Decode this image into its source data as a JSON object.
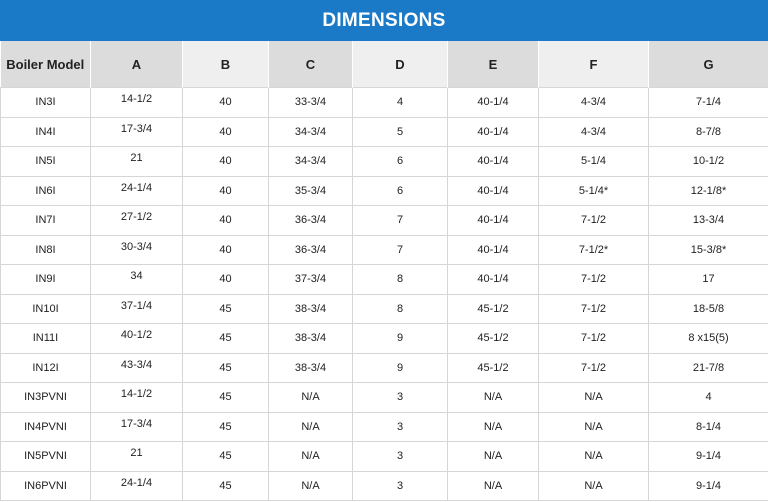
{
  "title": "DIMENSIONS",
  "columns": [
    "Boiler Model",
    "A",
    "B",
    "C",
    "D",
    "E",
    "F",
    "G"
  ],
  "rows": [
    [
      "IN3I",
      "14-1/2",
      "40",
      "33-3/4",
      "4",
      "40-1/4",
      "4-3/4",
      "7-1/4"
    ],
    [
      "IN4I",
      "17-3/4",
      "40",
      "34-3/4",
      "5",
      "40-1/4",
      "4-3/4",
      "8-7/8"
    ],
    [
      "IN5I",
      "21",
      "40",
      "34-3/4",
      "6",
      "40-1/4",
      "5-1/4",
      "10-1/2"
    ],
    [
      "IN6I",
      "24-1/4",
      "40",
      "35-3/4",
      "6",
      "40-1/4",
      "5-1/4*",
      "12-1/8*"
    ],
    [
      "IN7I",
      "27-1/2",
      "40",
      "36-3/4",
      "7",
      "40-1/4",
      "7-1/2",
      "13-3/4"
    ],
    [
      "IN8I",
      "30-3/4",
      "40",
      "36-3/4",
      "7",
      "40-1/4",
      "7-1/2*",
      "15-3/8*"
    ],
    [
      "IN9I",
      "34",
      "40",
      "37-3/4",
      "8",
      "40-1/4",
      "7-1/2",
      "17"
    ],
    [
      "IN10I",
      "37-1/4",
      "45",
      "38-3/4",
      "8",
      "45-1/2",
      "7-1/2",
      "18-5/8"
    ],
    [
      "IN11I",
      "40-1/2",
      "45",
      "38-3/4",
      "9",
      "45-1/2",
      "7-1/2",
      "8 x15(5)"
    ],
    [
      "IN12I",
      "43-3/4",
      "45",
      "38-3/4",
      "9",
      "45-1/2",
      "7-1/2",
      "21-7/8"
    ],
    [
      "IN3PVNI",
      "14-1/2",
      "45",
      "N/A",
      "3",
      "N/A",
      "N/A",
      "4"
    ],
    [
      "IN4PVNI",
      "17-3/4",
      "45",
      "N/A",
      "3",
      "N/A",
      "N/A",
      "8-1/4"
    ],
    [
      "IN5PVNI",
      "21",
      "45",
      "N/A",
      "3",
      "N/A",
      "N/A",
      "9-1/4"
    ],
    [
      "IN6PVNI",
      "24-1/4",
      "45",
      "N/A",
      "3",
      "N/A",
      "N/A",
      "9-1/4"
    ]
  ],
  "colors": {
    "title_bar": "#1b7ac8",
    "title_text": "#ffffff",
    "header_light": "#efefef",
    "header_dark": "#dcdcdc",
    "grid": "#d6d6d6"
  }
}
